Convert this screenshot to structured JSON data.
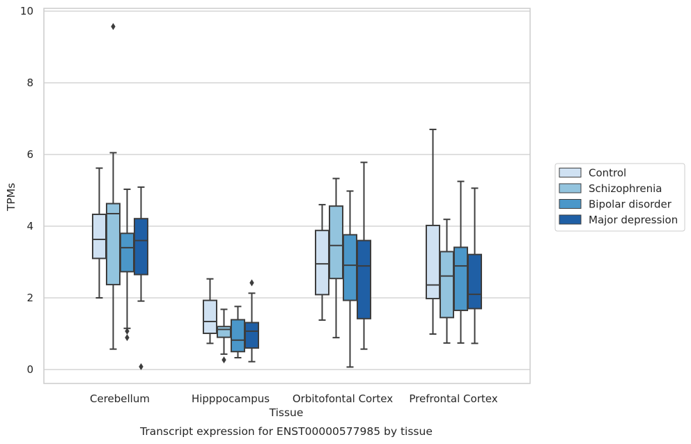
{
  "chart_data": {
    "type": "box",
    "title": "",
    "xlabel": "Tissue",
    "ylabel": "TPMs",
    "caption": "Transcript expression for ENST00000577985 by tissue",
    "ylim": [
      -0.4,
      10.05
    ],
    "yticks": [
      0,
      2,
      4,
      6,
      8,
      10
    ],
    "grid": "horizontal",
    "legend_position": "right",
    "categories": [
      "Cerebellum",
      "Hipppocampus",
      "Orbitofontal Cortex",
      "Prefrontal Cortex"
    ],
    "series": [
      {
        "name": "Control",
        "color": "#cfe1f2",
        "boxes": [
          {
            "whislo": 2.0,
            "q1": 3.1,
            "med": 3.63,
            "q3": 4.33,
            "whishi": 5.62,
            "fliers": []
          },
          {
            "whislo": 0.73,
            "q1": 1.01,
            "med": 1.34,
            "q3": 1.93,
            "whishi": 2.53,
            "fliers": []
          },
          {
            "whislo": 1.38,
            "q1": 2.09,
            "med": 2.95,
            "q3": 3.88,
            "whishi": 4.6,
            "fliers": []
          },
          {
            "whislo": 0.99,
            "q1": 1.98,
            "med": 2.36,
            "q3": 4.02,
            "whishi": 6.7,
            "fliers": []
          }
        ]
      },
      {
        "name": "Schizophrenia",
        "color": "#93c4de",
        "boxes": [
          {
            "whislo": 0.57,
            "q1": 2.37,
            "med": 4.35,
            "q3": 4.63,
            "whishi": 6.05,
            "fliers": [
              9.57
            ]
          },
          {
            "whislo": 0.43,
            "q1": 0.9,
            "med": 1.12,
            "q3": 1.2,
            "whishi": 1.68,
            "fliers": [
              0.27
            ]
          },
          {
            "whislo": 0.89,
            "q1": 2.54,
            "med": 3.46,
            "q3": 4.56,
            "whishi": 5.33,
            "fliers": []
          },
          {
            "whislo": 0.74,
            "q1": 1.45,
            "med": 2.61,
            "q3": 3.29,
            "whishi": 4.19,
            "fliers": []
          }
        ]
      },
      {
        "name": "Bipolar disorder",
        "color": "#4b97c9",
        "boxes": [
          {
            "whislo": 1.15,
            "q1": 2.73,
            "med": 3.4,
            "q3": 3.8,
            "whishi": 5.03,
            "fliers": [
              1.07,
              0.89
            ]
          },
          {
            "whislo": 0.33,
            "q1": 0.5,
            "med": 0.82,
            "q3": 1.39,
            "whishi": 1.76,
            "fliers": []
          },
          {
            "whislo": 0.07,
            "q1": 1.93,
            "med": 2.91,
            "q3": 3.76,
            "whishi": 4.98,
            "fliers": []
          },
          {
            "whislo": 0.74,
            "q1": 1.65,
            "med": 2.89,
            "q3": 3.41,
            "whishi": 5.25,
            "fliers": []
          }
        ]
      },
      {
        "name": "Major depression",
        "color": "#1f5fa5",
        "boxes": [
          {
            "whislo": 1.91,
            "q1": 2.65,
            "med": 3.6,
            "q3": 4.21,
            "whishi": 5.09,
            "fliers": [
              0.08
            ]
          },
          {
            "whislo": 0.22,
            "q1": 0.6,
            "med": 1.07,
            "q3": 1.31,
            "whishi": 2.13,
            "fliers": [
              2.42
            ]
          },
          {
            "whislo": 0.57,
            "q1": 1.42,
            "med": 2.89,
            "q3": 3.6,
            "whishi": 5.78,
            "fliers": []
          },
          {
            "whislo": 0.73,
            "q1": 1.7,
            "med": 2.1,
            "q3": 3.21,
            "whishi": 5.06,
            "fliers": []
          }
        ]
      }
    ]
  }
}
